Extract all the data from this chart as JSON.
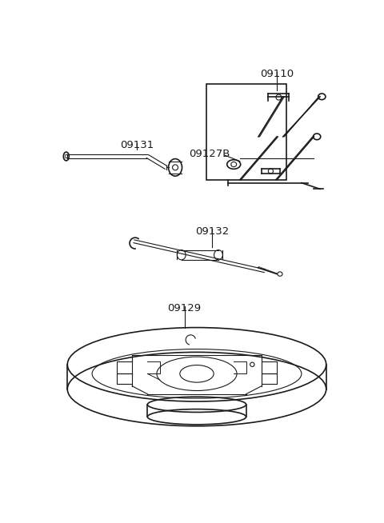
{
  "background_color": "#ffffff",
  "line_color": "#1a1a1a",
  "text_color": "#1a1a1a",
  "label_fontsize": 9.5,
  "parts": [
    "09131",
    "09110",
    "09127B",
    "09132",
    "09129"
  ]
}
